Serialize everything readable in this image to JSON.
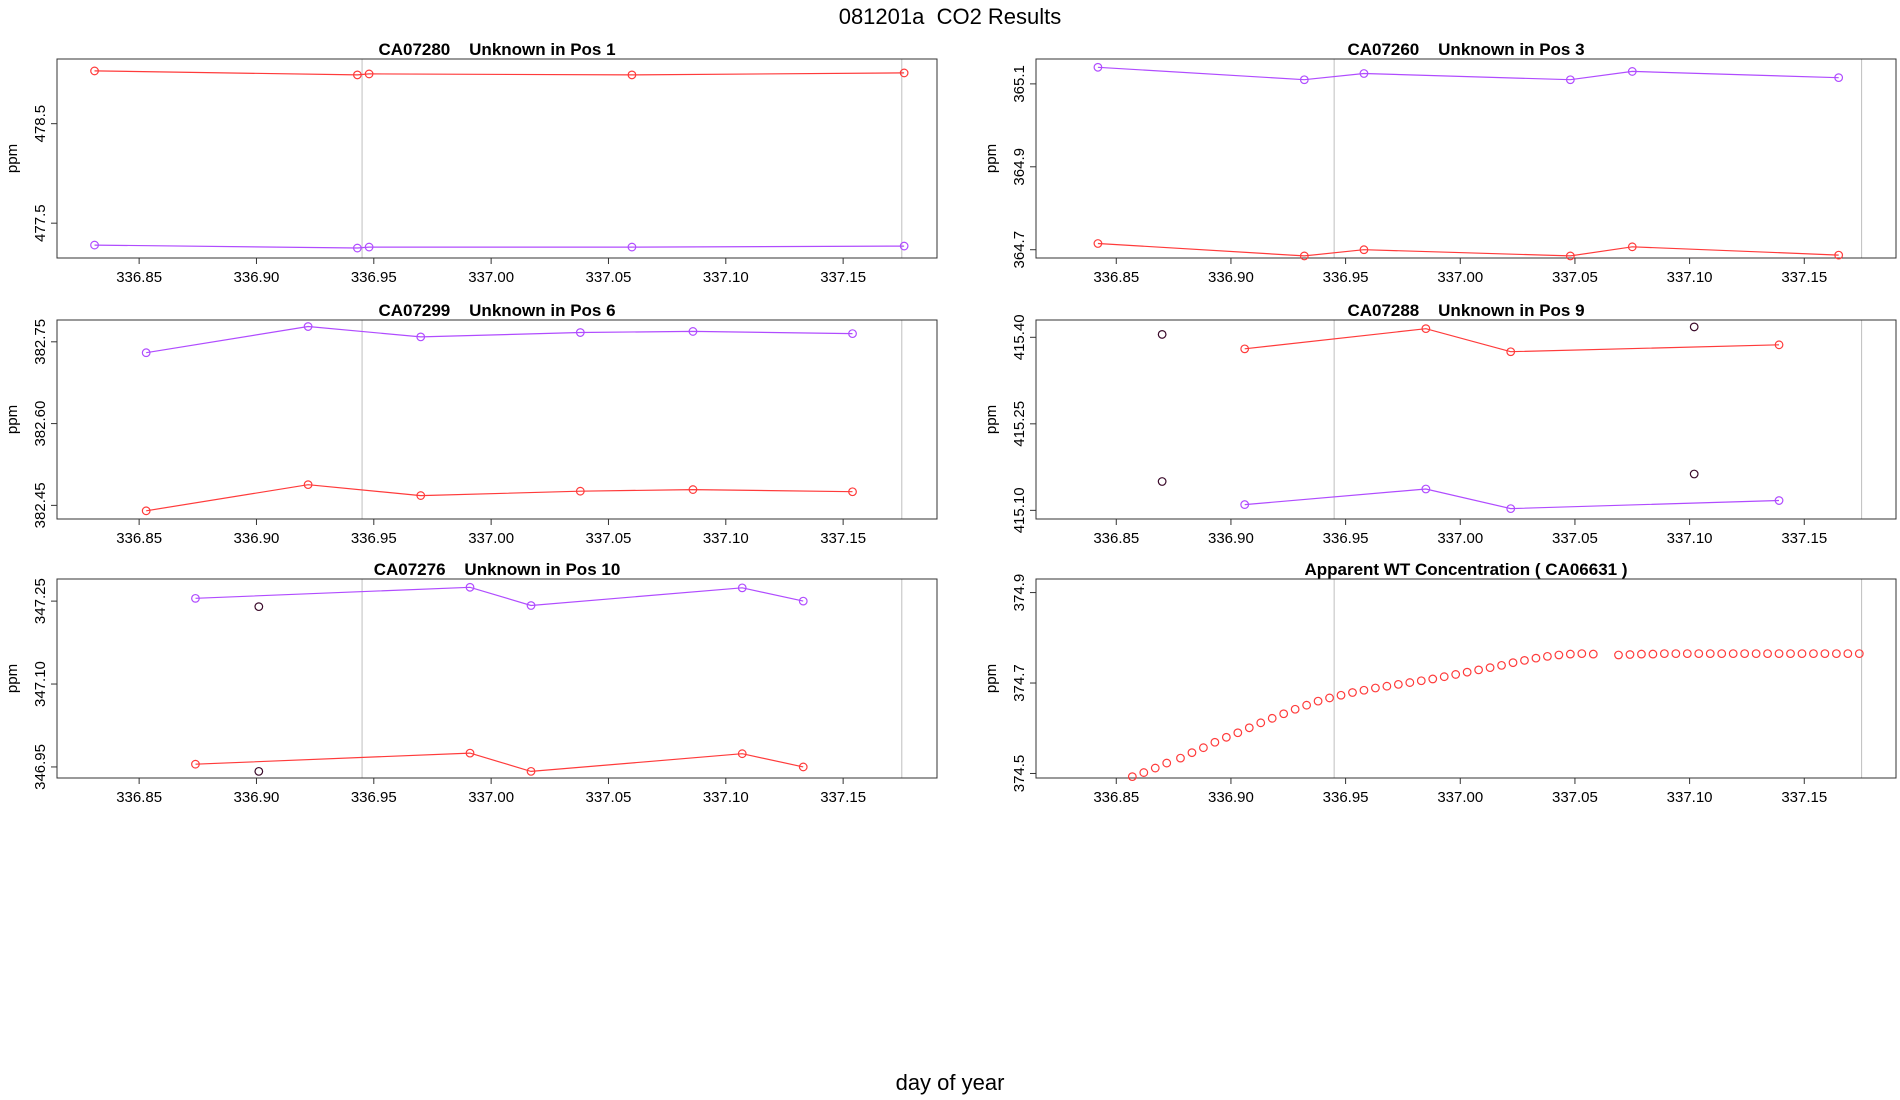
{
  "page": {
    "title": "081201a  CO2 Results",
    "xlabel": "day of year"
  },
  "colors": {
    "red": "#ff3b3b",
    "purple": "#b04cff",
    "dark": "#3a0a2a",
    "axis": "#333333",
    "refline": "#bfbfbf"
  },
  "chart_data": [
    {
      "type": "line",
      "title": "CA07280    Unknown in Pos 1",
      "ylabel": "ppm",
      "xlim": [
        336.815,
        337.19
      ],
      "ylim": [
        477.15,
        479.15
      ],
      "xticks": [
        336.85,
        336.9,
        336.95,
        337.0,
        337.05,
        337.1,
        337.15
      ],
      "yticks": [
        477.5,
        478.5
      ],
      "xtick_labels": [
        "336.85",
        "336.90",
        "336.95",
        "337.00",
        "337.05",
        "337.10",
        "337.15"
      ],
      "ytick_labels": [
        "477.5",
        "478.5"
      ],
      "ref_lines": [
        336.945,
        337.175
      ],
      "series": [
        {
          "name": "upper",
          "color": "red",
          "line": true,
          "x": [
            336.831,
            336.943,
            336.948,
            337.06,
            337.176
          ],
          "y": [
            479.03,
            478.99,
            479.0,
            478.99,
            479.01
          ]
        },
        {
          "name": "lower",
          "color": "purple",
          "line": true,
          "x": [
            336.831,
            336.943,
            336.948,
            337.06,
            337.176
          ],
          "y": [
            477.28,
            477.25,
            477.26,
            477.26,
            477.27
          ]
        }
      ]
    },
    {
      "type": "line",
      "title": "CA07260    Unknown in Pos 3",
      "ylabel": "ppm",
      "xlim": [
        336.815,
        337.19
      ],
      "ylim": [
        364.68,
        365.16
      ],
      "xticks": [
        336.85,
        336.9,
        336.95,
        337.0,
        337.05,
        337.1,
        337.15
      ],
      "yticks": [
        364.7,
        364.9,
        365.1
      ],
      "xtick_labels": [
        "336.85",
        "336.90",
        "336.95",
        "337.00",
        "337.05",
        "337.10",
        "337.15"
      ],
      "ytick_labels": [
        "364.7",
        "364.9",
        "365.1"
      ],
      "ref_lines": [
        336.945,
        337.175
      ],
      "series": [
        {
          "name": "upper",
          "color": "purple",
          "line": true,
          "x": [
            336.842,
            336.932,
            336.958,
            337.048,
            337.075,
            337.165
          ],
          "y": [
            365.14,
            365.11,
            365.125,
            365.11,
            365.13,
            365.115
          ]
        },
        {
          "name": "lower",
          "color": "red",
          "line": true,
          "x": [
            336.842,
            336.932,
            336.958,
            337.048,
            337.075,
            337.165
          ],
          "y": [
            364.715,
            364.685,
            364.7,
            364.685,
            364.707,
            364.687
          ]
        }
      ]
    },
    {
      "type": "line",
      "title": "CA07299    Unknown in Pos 6",
      "ylabel": "ppm",
      "xlim": [
        336.815,
        337.19
      ],
      "ylim": [
        382.425,
        382.79
      ],
      "xticks": [
        336.85,
        336.9,
        336.95,
        337.0,
        337.05,
        337.1,
        337.15
      ],
      "yticks": [
        382.45,
        382.6,
        382.75
      ],
      "xtick_labels": [
        "336.85",
        "336.90",
        "336.95",
        "337.00",
        "337.05",
        "337.10",
        "337.15"
      ],
      "ytick_labels": [
        "382.45",
        "382.60",
        "382.75"
      ],
      "ref_lines": [
        336.945,
        337.175
      ],
      "series": [
        {
          "name": "upper",
          "color": "purple",
          "line": true,
          "x": [
            336.853,
            336.922,
            336.97,
            337.038,
            337.086,
            337.154
          ],
          "y": [
            382.73,
            382.778,
            382.759,
            382.767,
            382.769,
            382.765
          ]
        },
        {
          "name": "lower",
          "color": "red",
          "line": true,
          "x": [
            336.853,
            336.922,
            336.97,
            337.038,
            337.086,
            337.154
          ],
          "y": [
            382.44,
            382.488,
            382.468,
            382.476,
            382.479,
            382.475
          ]
        }
      ]
    },
    {
      "type": "line",
      "title": "CA07288    Unknown in Pos 9",
      "ylabel": "ppm",
      "xlim": [
        336.815,
        337.19
      ],
      "ylim": [
        415.085,
        415.43
      ],
      "xticks": [
        336.85,
        336.9,
        336.95,
        337.0,
        337.05,
        337.1,
        337.15
      ],
      "yticks": [
        415.1,
        415.25,
        415.4
      ],
      "xtick_labels": [
        "336.85",
        "336.90",
        "336.95",
        "337.00",
        "337.05",
        "337.10",
        "337.15"
      ],
      "ytick_labels": [
        "415.10",
        "415.25",
        "415.40"
      ],
      "ref_lines": [
        336.945,
        337.175
      ],
      "series": [
        {
          "name": "upper",
          "color": "red",
          "line": true,
          "x": [
            336.906,
            336.985,
            337.022,
            337.139
          ],
          "y": [
            415.38,
            415.415,
            415.375,
            415.387
          ]
        },
        {
          "name": "lower",
          "color": "purple",
          "line": true,
          "x": [
            336.906,
            336.985,
            337.022,
            337.139
          ],
          "y": [
            415.11,
            415.137,
            415.103,
            415.117
          ]
        },
        {
          "name": "outliers",
          "color": "dark",
          "line": false,
          "x": [
            336.87,
            337.102,
            336.87,
            337.102
          ],
          "y": [
            415.405,
            415.418,
            415.15,
            415.163
          ]
        }
      ]
    },
    {
      "type": "line",
      "title": "CA07276    Unknown in Pos 10",
      "ylabel": "ppm",
      "xlim": [
        336.815,
        337.19
      ],
      "ylim": [
        346.93,
        347.29
      ],
      "xticks": [
        336.85,
        336.9,
        336.95,
        337.0,
        337.05,
        337.1,
        337.15
      ],
      "yticks": [
        346.95,
        347.1,
        347.25
      ],
      "xtick_labels": [
        "336.85",
        "336.90",
        "336.95",
        "337.00",
        "337.05",
        "337.10",
        "337.15"
      ],
      "ytick_labels": [
        "346.95",
        "347.10",
        "347.25"
      ],
      "ref_lines": [
        336.945,
        337.175
      ],
      "series": [
        {
          "name": "upper",
          "color": "purple",
          "line": true,
          "x": [
            336.874,
            336.991,
            337.017,
            337.107,
            337.133
          ],
          "y": [
            347.255,
            347.275,
            347.242,
            347.274,
            347.25
          ]
        },
        {
          "name": "lower",
          "color": "red",
          "line": true,
          "x": [
            336.874,
            336.991,
            337.017,
            337.107,
            337.133
          ],
          "y": [
            346.955,
            346.975,
            346.942,
            346.974,
            346.95
          ]
        },
        {
          "name": "outliers",
          "color": "dark",
          "line": false,
          "x": [
            336.901,
            336.901
          ],
          "y": [
            347.24,
            346.942
          ]
        }
      ]
    },
    {
      "type": "scatter",
      "title": "Apparent WT Concentration ( CA06631 )",
      "ylabel": "ppm",
      "xlim": [
        336.815,
        337.19
      ],
      "ylim": [
        374.49,
        374.93
      ],
      "xticks": [
        336.85,
        336.9,
        336.95,
        337.0,
        337.05,
        337.1,
        337.15
      ],
      "yticks": [
        374.5,
        374.7,
        374.9
      ],
      "xtick_labels": [
        "336.85",
        "336.90",
        "336.95",
        "337.00",
        "337.05",
        "337.10",
        "337.15"
      ],
      "ytick_labels": [
        "374.5",
        "374.7",
        "374.9"
      ],
      "ref_lines": [
        336.945,
        337.175
      ],
      "series": [
        {
          "name": "WT",
          "color": "red",
          "line": false,
          "x": [
            336.857,
            336.862,
            336.867,
            336.872,
            336.878,
            336.883,
            336.888,
            336.893,
            336.898,
            336.903,
            336.908,
            336.913,
            336.918,
            336.923,
            336.928,
            336.933,
            336.938,
            336.943,
            336.948,
            336.953,
            336.958,
            336.963,
            336.968,
            336.973,
            336.978,
            336.983,
            336.988,
            336.993,
            336.998,
            337.003,
            337.008,
            337.013,
            337.018,
            337.023,
            337.028,
            337.033,
            337.038,
            337.043,
            337.048,
            337.053,
            337.058,
            337.069,
            337.074,
            337.079,
            337.084,
            337.089,
            337.094,
            337.099,
            337.104,
            337.109,
            337.114,
            337.119,
            337.124,
            337.129,
            337.134,
            337.139,
            337.144,
            337.149,
            337.154,
            337.159,
            337.164,
            337.169,
            337.174
          ],
          "y": [
            374.493,
            374.502,
            374.512,
            374.523,
            374.534,
            374.546,
            374.557,
            374.569,
            374.58,
            374.59,
            374.601,
            374.612,
            374.622,
            374.632,
            374.642,
            374.651,
            374.66,
            374.667,
            374.673,
            374.679,
            374.684,
            374.689,
            374.693,
            374.697,
            374.701,
            374.705,
            374.709,
            374.714,
            374.719,
            374.724,
            374.729,
            374.734,
            374.739,
            374.745,
            374.75,
            374.755,
            374.759,
            374.762,
            374.764,
            374.765,
            374.764,
            374.762,
            374.763,
            374.764,
            374.764,
            374.765,
            374.765,
            374.765,
            374.765,
            374.765,
            374.765,
            374.765,
            374.765,
            374.765,
            374.765,
            374.765,
            374.765,
            374.765,
            374.765,
            374.765,
            374.765,
            374.765,
            374.765
          ]
        }
      ]
    }
  ]
}
